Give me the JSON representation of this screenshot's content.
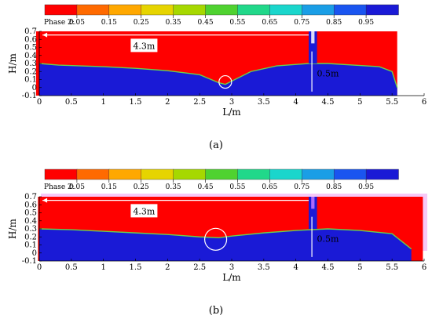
{
  "legend": {
    "title": "Phase 2:",
    "colors": [
      "#ff0000",
      "#ff6a00",
      "#ffa800",
      "#e6d400",
      "#a6d800",
      "#4fd230",
      "#21d88a",
      "#1ad6cc",
      "#1a9ee6",
      "#1a55f0",
      "#1a1ad6"
    ],
    "ticks": [
      "0.05",
      "0.15",
      "0.25",
      "0.35",
      "0.45",
      "0.55",
      "0.65",
      "0.75",
      "0.85",
      "0.95"
    ]
  },
  "chart_data": [
    {
      "type": "heatmap",
      "panel": "(a)",
      "xlabel": "L/m",
      "ylabel": "H/m",
      "xlim": [
        0,
        6
      ],
      "ylim": [
        -0.1,
        0.7
      ],
      "x_ticks": [
        "0",
        "0.5",
        "1",
        "1.5",
        "2",
        "2.5",
        "3",
        "3.5",
        "4",
        "4.5",
        "5",
        "5.5",
        "6"
      ],
      "y_ticks": [
        "-0.1",
        "0",
        "0.1",
        "0.2",
        "0.3",
        "0.4",
        "0.5",
        "0.6",
        "0.7"
      ],
      "annotations": [
        "4.3m",
        "0.5m"
      ],
      "interface": {
        "x": [
          0,
          0.3,
          1.0,
          1.5,
          2.0,
          2.5,
          2.8,
          2.9,
          3.0,
          3.3,
          3.7,
          4.2,
          4.5,
          4.9,
          5.3,
          5.5,
          5.58
        ],
        "y": [
          0.3,
          0.28,
          0.26,
          0.24,
          0.21,
          0.16,
          0.06,
          0.04,
          0.08,
          0.2,
          0.27,
          0.3,
          0.3,
          0.28,
          0.26,
          0.2,
          0.0
        ]
      }
    },
    {
      "type": "heatmap",
      "panel": "(b)",
      "xlabel": "L/m",
      "ylabel": "H/m",
      "xlim": [
        0,
        6
      ],
      "ylim": [
        -0.1,
        0.7
      ],
      "x_ticks": [
        "0",
        "0.5",
        "1",
        "1.5",
        "2",
        "2.5",
        "3",
        "3.5",
        "4",
        "4.5",
        "5",
        "5.5",
        "6"
      ],
      "y_ticks": [
        "-0.1",
        "0",
        "0.1",
        "0.2",
        "0.3",
        "0.4",
        "0.5",
        "0.6",
        "0.7"
      ],
      "annotations": [
        "4.3m",
        "0.5m"
      ],
      "interface": {
        "x": [
          0,
          0.5,
          1.0,
          1.5,
          2.0,
          2.5,
          2.8,
          3.0,
          3.5,
          4.0,
          4.5,
          5.0,
          5.5,
          5.8
        ],
        "y": [
          0.3,
          0.29,
          0.27,
          0.25,
          0.23,
          0.2,
          0.19,
          0.21,
          0.25,
          0.28,
          0.3,
          0.28,
          0.24,
          0.05
        ]
      }
    }
  ],
  "captions": [
    "(a)",
    "(b)"
  ]
}
